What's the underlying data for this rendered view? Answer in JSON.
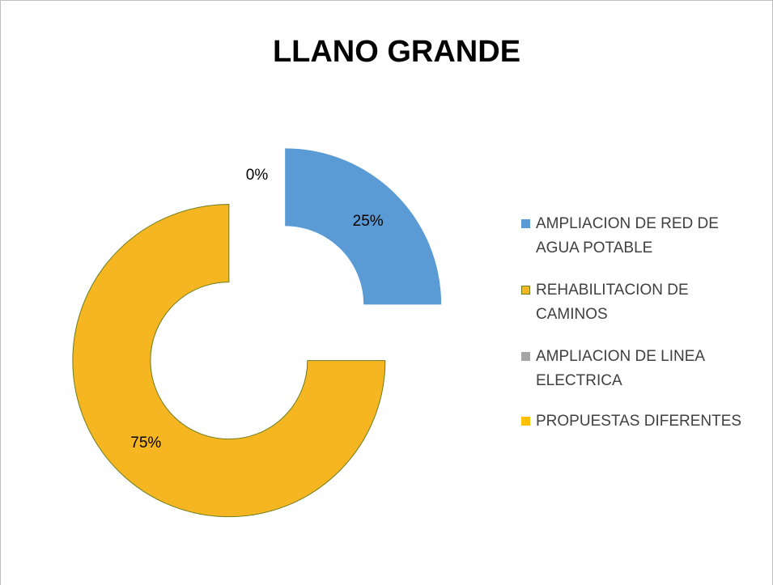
{
  "chart_data": {
    "type": "donut",
    "title": "LLANO GRANDE",
    "categories": [
      "AMPLIACION DE RED DE AGUA POTABLE",
      "REHABILITACION DE CAMINOS",
      "AMPLIACION DE LINEA ELECTRICA",
      "PROPUESTAS DIFERENTES"
    ],
    "values": [
      25,
      75,
      0,
      0
    ],
    "value_labels": [
      "25%",
      "75%",
      "0%",
      null
    ],
    "colors": [
      "#5b9bd5",
      "#f5b622",
      "#a5a5a5",
      "#ffc000"
    ],
    "legend": "right"
  }
}
